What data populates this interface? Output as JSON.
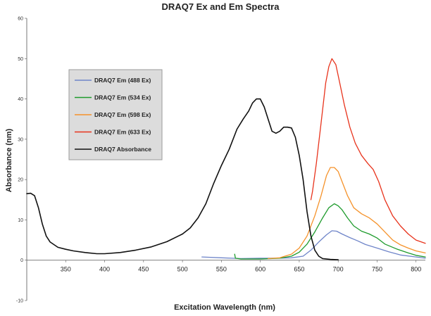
{
  "chart_data": {
    "type": "line",
    "title": "DRAQ7 Ex and Em Spectra",
    "xlabel": "Excitation Wavelength (nm)",
    "ylabel": "Absorbance (nm)",
    "xlim": [
      300,
      812
    ],
    "ylim": [
      -10,
      60
    ],
    "x_ticks": [
      "350",
      "400",
      "450",
      "500",
      "550",
      "600",
      "650",
      "700",
      "750",
      "800"
    ],
    "y_ticks": [
      "-10",
      "0",
      "10",
      "20",
      "30",
      "40",
      "50",
      "60"
    ],
    "grid": false,
    "legend_position": "upper-left",
    "series": [
      {
        "name": "DRAQ7 Em (488 Ex)",
        "color": "#6f85c9",
        "x": [
          525,
          550,
          575,
          600,
          625,
          640,
          655,
          665,
          675,
          685,
          692,
          698,
          705,
          715,
          725,
          735,
          750,
          765,
          780,
          800,
          812
        ],
        "y": [
          0.8,
          0.6,
          0.4,
          0.5,
          0.5,
          0.6,
          1.0,
          2.5,
          4.5,
          6.3,
          7.3,
          7.2,
          6.5,
          5.6,
          4.8,
          3.9,
          3.0,
          2.1,
          1.3,
          0.8,
          0.5
        ]
      },
      {
        "name": "DRAQ7 Em (534 Ex)",
        "color": "#1e9b2c",
        "x": [
          567,
          568,
          575,
          600,
          625,
          640,
          650,
          660,
          670,
          680,
          688,
          695,
          700,
          705,
          712,
          720,
          730,
          740,
          750,
          760,
          775,
          790,
          800,
          812
        ],
        "y": [
          1.5,
          0.5,
          0.3,
          0.3,
          0.5,
          1.0,
          2.0,
          4.0,
          7.0,
          10.5,
          13.0,
          14.0,
          13.5,
          12.5,
          10.5,
          8.5,
          7.2,
          6.5,
          5.5,
          4.0,
          2.8,
          1.8,
          1.2,
          0.8
        ]
      },
      {
        "name": "DRAQ7 Em (598 Ex)",
        "color": "#f5922a",
        "x": [
          610,
          625,
          640,
          650,
          660,
          670,
          678,
          685,
          690,
          695,
          700,
          705,
          712,
          720,
          730,
          740,
          750,
          760,
          770,
          780,
          790,
          800,
          812
        ],
        "y": [
          0.4,
          0.6,
          1.5,
          3.0,
          6.0,
          11.0,
          16.0,
          21.0,
          23.0,
          23.0,
          22.0,
          19.5,
          16.0,
          13.0,
          11.5,
          10.5,
          9.0,
          7.0,
          5.0,
          3.8,
          3.0,
          2.3,
          1.8
        ]
      },
      {
        "name": "DRAQ7 Em (633 Ex)",
        "color": "#e8331c",
        "x": [
          665,
          667,
          672,
          678,
          684,
          688,
          692,
          697,
          702,
          708,
          715,
          722,
          730,
          738,
          745,
          752,
          760,
          770,
          780,
          790,
          800,
          812
        ],
        "y": [
          15.0,
          17.0,
          24.0,
          34.0,
          44.0,
          48.0,
          50.0,
          48.5,
          44.0,
          38.5,
          33.0,
          29.0,
          26.0,
          24.0,
          22.5,
          19.5,
          15.0,
          11.0,
          8.5,
          6.5,
          5.0,
          4.2
        ]
      },
      {
        "name": "DRAQ7 Absorbance",
        "color": "#111111",
        "x": [
          300,
          305,
          310,
          315,
          320,
          325,
          330,
          340,
          350,
          360,
          375,
          390,
          400,
          420,
          440,
          460,
          480,
          500,
          510,
          520,
          530,
          540,
          550,
          560,
          570,
          578,
          585,
          590,
          595,
          600,
          605,
          610,
          615,
          620,
          625,
          630,
          635,
          640,
          645,
          650,
          655,
          660,
          665,
          670,
          675,
          680,
          690,
          700
        ],
        "y": [
          16.5,
          16.6,
          16.0,
          13.0,
          9.0,
          6.0,
          4.5,
          3.2,
          2.7,
          2.3,
          1.9,
          1.6,
          1.6,
          1.9,
          2.5,
          3.3,
          4.6,
          6.5,
          8.0,
          10.5,
          14.0,
          19.0,
          23.5,
          27.5,
          32.5,
          35.0,
          37.0,
          39.0,
          40.0,
          40.0,
          38.0,
          35.0,
          32.0,
          31.5,
          32.0,
          33.0,
          33.0,
          32.8,
          30.5,
          26.0,
          20.0,
          12.0,
          6.0,
          2.5,
          1.0,
          0.4,
          0.2,
          0.1
        ]
      }
    ]
  }
}
